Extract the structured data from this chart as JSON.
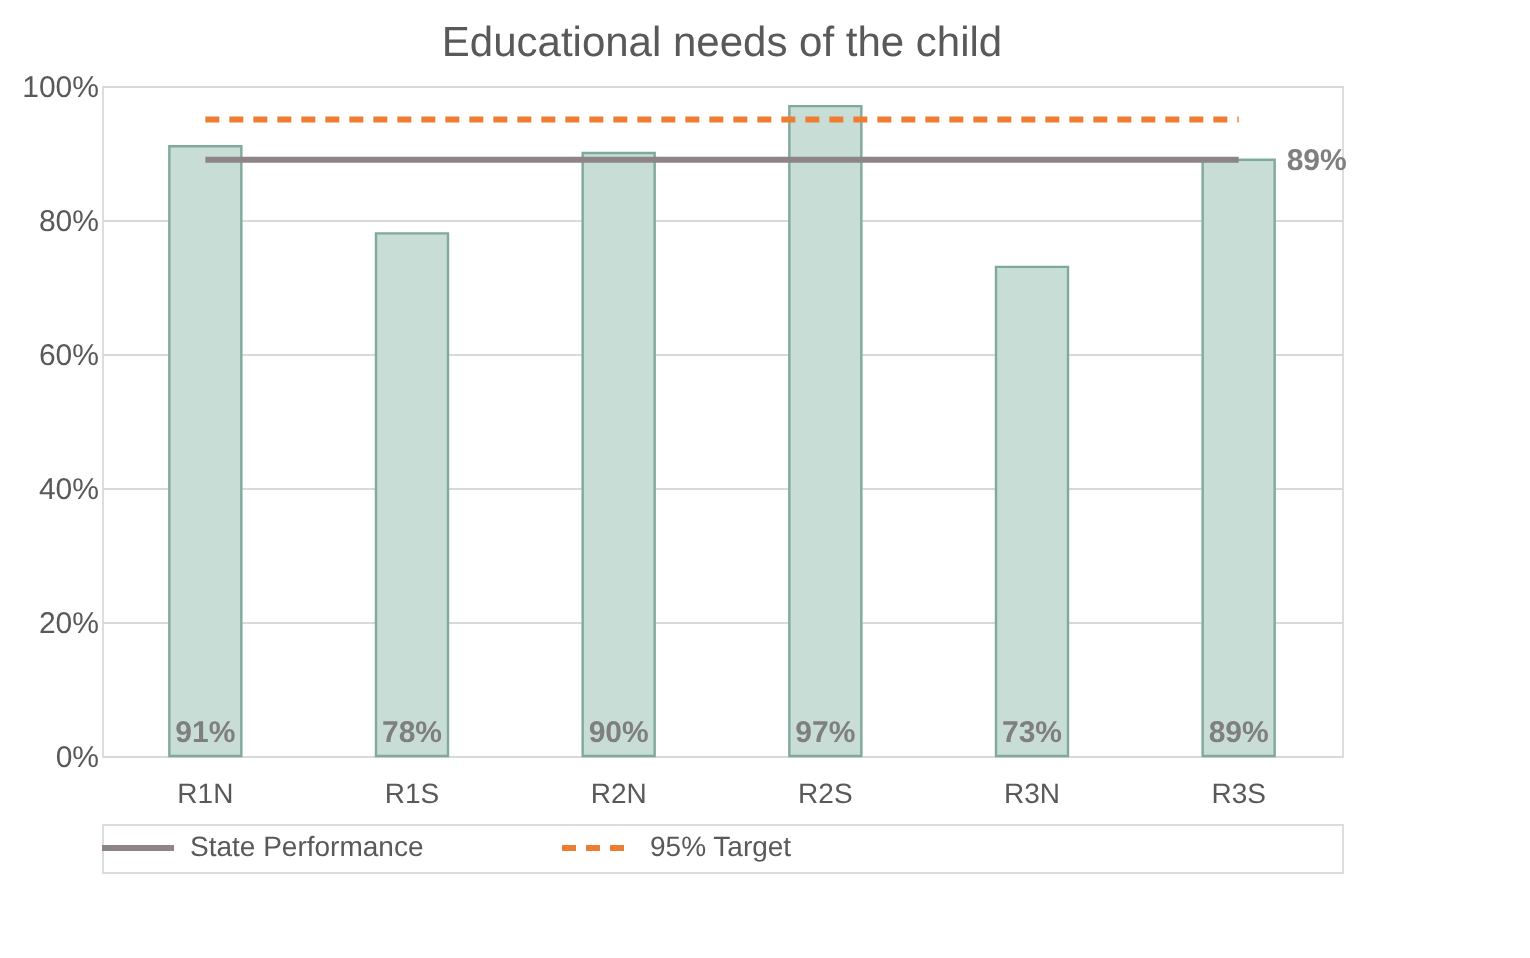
{
  "chart_data": {
    "type": "bar",
    "title": "Educational needs of the child",
    "categories": [
      "R1N",
      "R1S",
      "R2N",
      "R2S",
      "R3N",
      "R3S"
    ],
    "series": [
      {
        "color": "#c9ddd7",
        "values": [
          91,
          78,
          90,
          97,
          73,
          89
        ],
        "value_labels": [
          "91%",
          "78%",
          "90%",
          "97%",
          "73%",
          "89%"
        ]
      },
      {
        "type": "line",
        "name": "State Performance",
        "color": "#8c8486",
        "line_style": "solid",
        "values": [
          89,
          89,
          89,
          89,
          89,
          89
        ]
      },
      {
        "type": "line",
        "name": "95% Target",
        "color": "#ed7d31",
        "line_style": "dashed",
        "values": [
          95,
          95,
          95,
          95,
          95,
          95
        ]
      }
    ],
    "ylim": [
      0,
      100
    ],
    "yticks": [
      {
        "value": 0,
        "label": "0%"
      },
      {
        "value": 20,
        "label": "20%"
      },
      {
        "value": 40,
        "label": "40%"
      },
      {
        "value": 60,
        "label": "60%"
      },
      {
        "value": 80,
        "label": "80%"
      },
      {
        "value": 100,
        "label": "100%"
      }
    ],
    "grid": "y",
    "legend": "bottom",
    "marker": "none",
    "annotations": [
      "89%"
    ]
  }
}
